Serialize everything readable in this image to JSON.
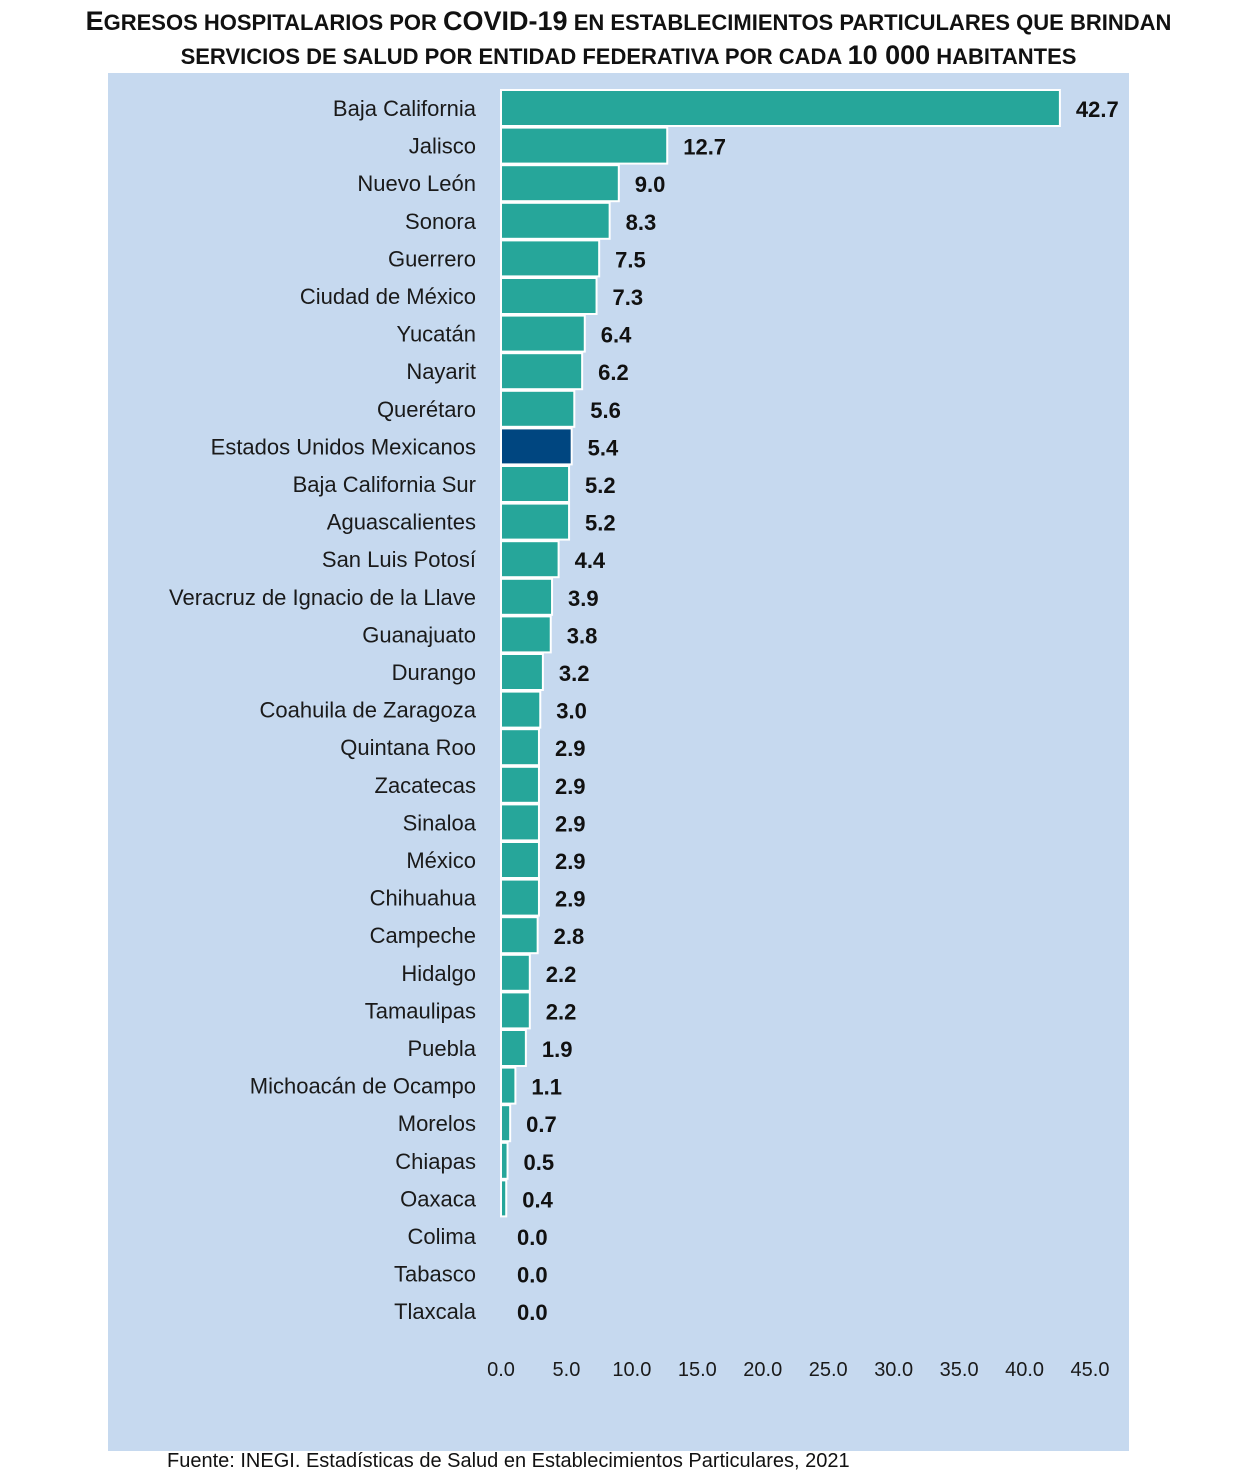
{
  "title": {
    "line1_a": "E",
    "line1_b": "GRESOS HOSPITALARIOS POR ",
    "line1_c": "COVID-19",
    "line1_d": " EN ESTABLECIMIENTOS PARTICULARES QUE BRINDAN",
    "line2_a": "SERVICIOS DE SALUD POR ENTIDAD FEDERATIVA POR CADA ",
    "line2_b": "10 000",
    "line2_c": " HABITANTES"
  },
  "source": "Fuente: INEGI. Estadísticas de Salud en Establecimientos Particulares, 2021",
  "colors": {
    "background": "#c6d9ef",
    "bar": "#26a69a",
    "highlight_bar": "#004680",
    "bar_edge": "#ffffff"
  },
  "chart_data": {
    "type": "bar",
    "orientation": "horizontal",
    "categories": [
      "Baja California",
      "Jalisco",
      "Nuevo León",
      "Sonora",
      "Guerrero",
      "Ciudad de México",
      "Yucatán",
      "Nayarit",
      "Querétaro",
      "Estados Unidos Mexicanos",
      "Baja California Sur",
      "Aguascalientes",
      "San Luis Potosí",
      "Veracruz de Ignacio de la Llave",
      "Guanajuato",
      "Durango",
      "Coahuila de Zaragoza",
      "Quintana Roo",
      "Zacatecas",
      "Sinaloa",
      "México",
      "Chihuahua",
      "Campeche",
      "Hidalgo",
      "Tamaulipas",
      "Puebla",
      "Michoacán de Ocampo",
      "Morelos",
      "Chiapas",
      "Oaxaca",
      "Colima",
      "Tabasco",
      "Tlaxcala"
    ],
    "values": [
      42.7,
      12.7,
      9.0,
      8.3,
      7.5,
      7.3,
      6.4,
      6.2,
      5.6,
      5.4,
      5.2,
      5.2,
      4.4,
      3.9,
      3.8,
      3.2,
      3.0,
      2.9,
      2.9,
      2.9,
      2.9,
      2.9,
      2.8,
      2.2,
      2.2,
      1.9,
      1.1,
      0.7,
      0.5,
      0.4,
      0.0,
      0.0,
      0.0
    ],
    "value_labels": [
      "42.7",
      "12.7",
      "9.0",
      "8.3",
      "7.5",
      "7.3",
      "6.4",
      "6.2",
      "5.6",
      "5.4",
      "5.2",
      "5.2",
      "4.4",
      "3.9",
      "3.8",
      "3.2",
      "3.0",
      "2.9",
      "2.9",
      "2.9",
      "2.9",
      "2.9",
      "2.8",
      "2.2",
      "2.2",
      "1.9",
      "1.1",
      "0.7",
      "0.5",
      "0.4",
      "0.0",
      "0.0",
      "0.0"
    ],
    "highlight": "Estados Unidos Mexicanos",
    "xlim": [
      0,
      45
    ],
    "x_ticks": [
      0,
      5,
      10,
      15,
      20,
      25,
      30,
      35,
      40,
      45
    ],
    "x_tick_labels": [
      "0.0",
      "5.0",
      "10.0",
      "15.0",
      "20.0",
      "25.0",
      "30.0",
      "35.0",
      "40.0",
      "45.0"
    ],
    "grid": false,
    "legend": "none"
  }
}
